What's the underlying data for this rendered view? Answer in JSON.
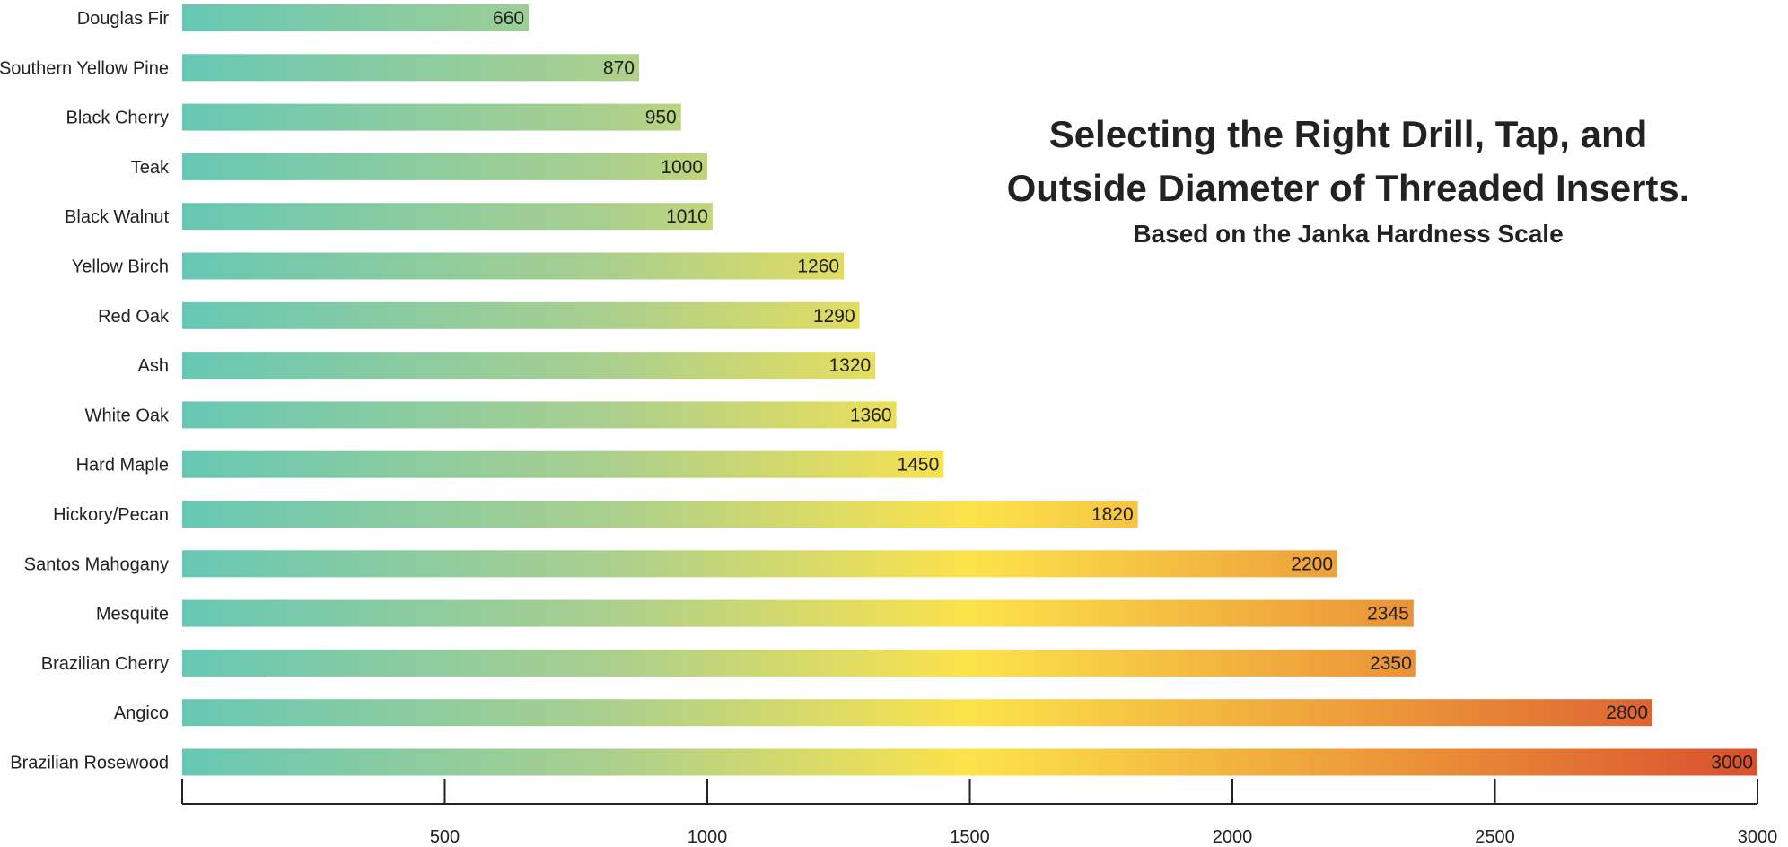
{
  "chart_data": {
    "type": "bar",
    "orientation": "horizontal",
    "title": "Selecting the Right Drill, Tap, and Outside Diameter of Threaded Inserts.",
    "title_lines": [
      "Selecting the Right Drill, Tap, and",
      "Outside Diameter of Threaded Inserts."
    ],
    "subtitle": "Based on the Janka Hardness Scale",
    "xlabel": "",
    "ylabel": "",
    "xlim": [
      0,
      3000
    ],
    "x_ticks": [
      500,
      1000,
      1500,
      2000,
      2500,
      3000
    ],
    "grid": false,
    "legend": "none",
    "categories": [
      "Douglas Fir",
      "Southern Yellow Pine",
      "Black Cherry",
      "Teak",
      "Black Walnut",
      "Yellow Birch",
      "Red Oak",
      "Ash",
      "White Oak",
      "Hard Maple",
      "Hickory/Pecan",
      "Santos Mahogany",
      "Mesquite",
      "Brazilian Cherry",
      "Angico",
      "Brazilian Rosewood"
    ],
    "values": [
      660,
      870,
      950,
      1000,
      1010,
      1260,
      1290,
      1320,
      1360,
      1450,
      1820,
      2200,
      2345,
      2350,
      2800,
      3000
    ],
    "colors": {
      "gradient_stops": [
        {
          "value": 0,
          "color": "#66c8b4"
        },
        {
          "value": 800,
          "color": "#a9cf8e"
        },
        {
          "value": 1500,
          "color": "#fce34a"
        },
        {
          "value": 2200,
          "color": "#eea03a"
        },
        {
          "value": 3000,
          "color": "#d9502e"
        }
      ],
      "axis": "#222222",
      "text": "#222222"
    }
  }
}
